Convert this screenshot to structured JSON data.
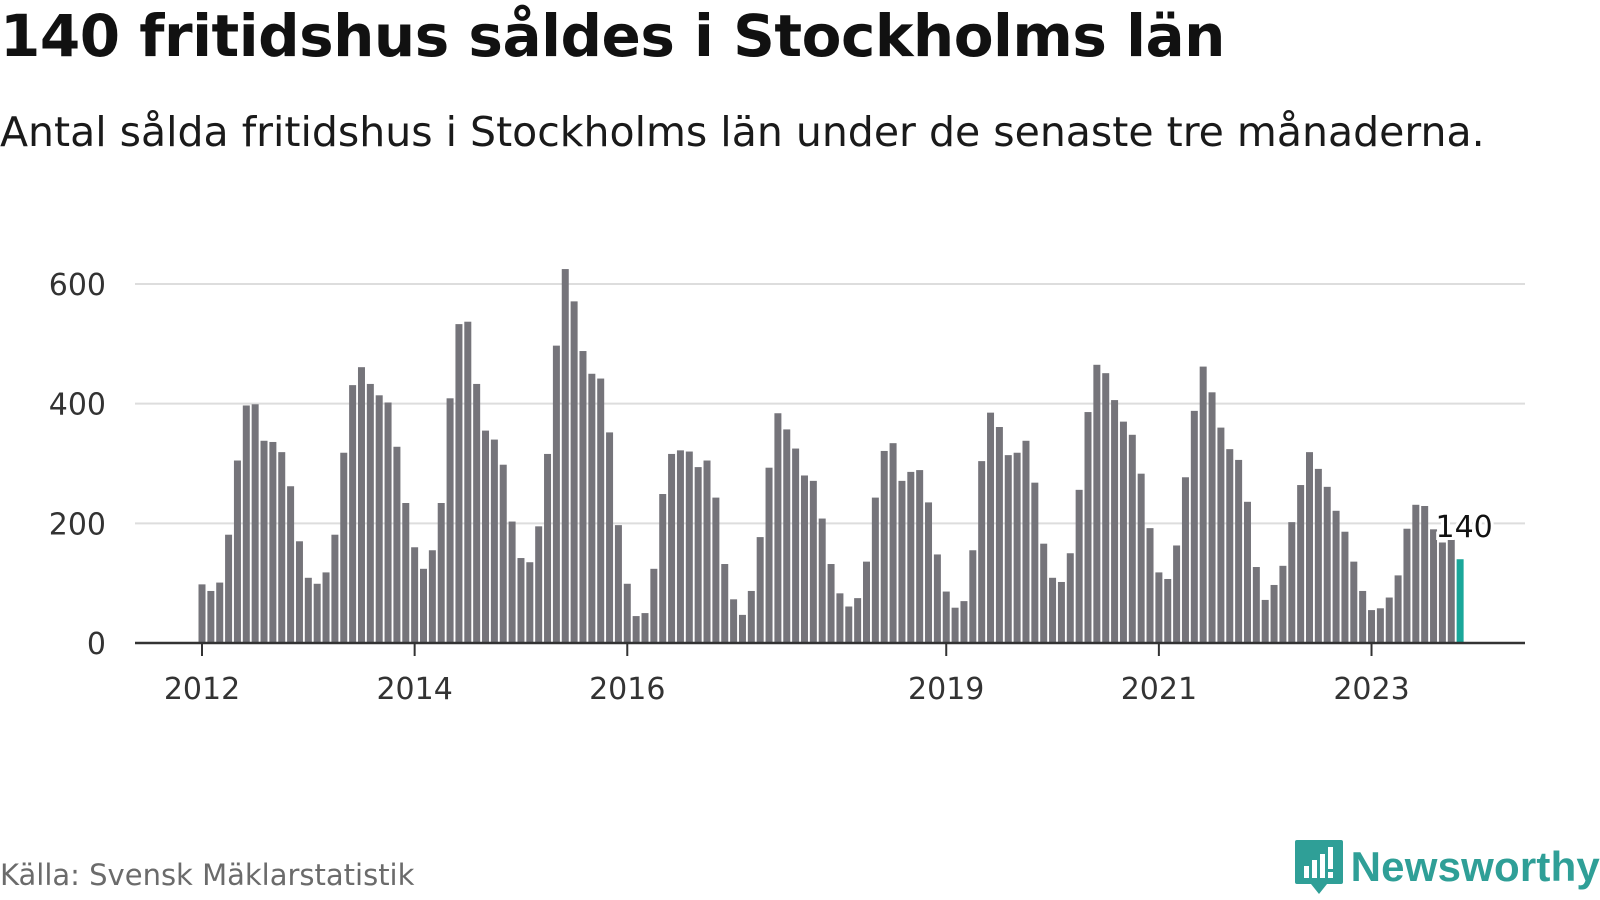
{
  "title": "140 fritidshus såldes i Stockholms län",
  "subtitle": "Antal sålda fritidshus i Stockholms län under de senaste tre månaderna.",
  "source": "Källa: Svensk Mäklarstatistik",
  "brand": {
    "name": "Newsworthy",
    "logo_icon": "bar-chart-speech-bubble-icon",
    "color": "#2f9f97"
  },
  "colors": {
    "bar": "#75747a",
    "highlight": "#1aa79a",
    "grid": "#dddddd",
    "axis": "#333333"
  },
  "chart_data": {
    "type": "bar",
    "title": "140 fritidshus såldes i Stockholms län",
    "xlabel": "",
    "ylabel": "",
    "ylim": [
      0,
      630
    ],
    "yticks": [
      0,
      200,
      400,
      600
    ],
    "xtick_labels": [
      "2012",
      "2014",
      "2016",
      "2019",
      "2021",
      "2023"
    ],
    "xtick_bar_index": [
      0,
      24,
      48,
      84,
      108,
      132
    ],
    "highlight": {
      "index": 142,
      "label": "140",
      "value": 140
    },
    "values": [
      98,
      87,
      101,
      181,
      305,
      397,
      399,
      338,
      336,
      319,
      262,
      170,
      109,
      99,
      118,
      181,
      318,
      431,
      461,
      433,
      414,
      402,
      328,
      234,
      160,
      124,
      155,
      234,
      409,
      533,
      537,
      433,
      355,
      340,
      298,
      203,
      142,
      135,
      195,
      316,
      497,
      625,
      571,
      488,
      450,
      442,
      352,
      197,
      99,
      45,
      50,
      124,
      249,
      316,
      322,
      320,
      294,
      305,
      243,
      132,
      73,
      47,
      87,
      177,
      293,
      384,
      357,
      325,
      280,
      271,
      208,
      132,
      83,
      61,
      75,
      136,
      243,
      321,
      334,
      271,
      286,
      289,
      235,
      148,
      86,
      59,
      70,
      155,
      304,
      385,
      361,
      314,
      318,
      338,
      268,
      166,
      109,
      102,
      150,
      256,
      386,
      465,
      451,
      406,
      370,
      348,
      283,
      192,
      118,
      107,
      163,
      277,
      388,
      462,
      419,
      360,
      324,
      306,
      236,
      127,
      72,
      97,
      129,
      202,
      264,
      319,
      291,
      261,
      221,
      186,
      136,
      87,
      55,
      58,
      76,
      113,
      191,
      231,
      229,
      190,
      168,
      174,
      140
    ]
  }
}
